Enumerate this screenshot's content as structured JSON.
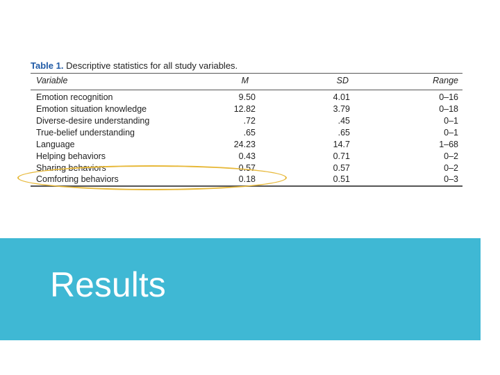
{
  "table": {
    "caption_label": "Table 1.",
    "caption_text": "Descriptive statistics for all study variables.",
    "columns": [
      "Variable",
      "M",
      "SD",
      "Range"
    ],
    "rows": [
      {
        "variable": "Emotion recognition",
        "m": "9.50",
        "sd": "4.01",
        "range": "0–16"
      },
      {
        "variable": "Emotion situation knowledge",
        "m": "12.82",
        "sd": "3.79",
        "range": "0–18"
      },
      {
        "variable": "Diverse-desire understanding",
        "m": ".72",
        "sd": ".45",
        "range": "0–1"
      },
      {
        "variable": "True-belief understanding",
        "m": ".65",
        "sd": ".65",
        "range": "0–1"
      },
      {
        "variable": "Language",
        "m": "24.23",
        "sd": "14.7",
        "range": "1–68"
      },
      {
        "variable": "Helping behaviors",
        "m": "0.43",
        "sd": "0.71",
        "range": "0–2"
      },
      {
        "variable": "Sharing behaviors",
        "m": "0.57",
        "sd": "0.57",
        "range": "0–2"
      },
      {
        "variable": "Comforting behaviors",
        "m": "0.18",
        "sd": "0.51",
        "range": "0–3"
      }
    ]
  },
  "highlight": {
    "color": "#e7b838",
    "row": "Comforting behaviors"
  },
  "banner": {
    "title": "Results",
    "color": "#3fb8d4"
  }
}
